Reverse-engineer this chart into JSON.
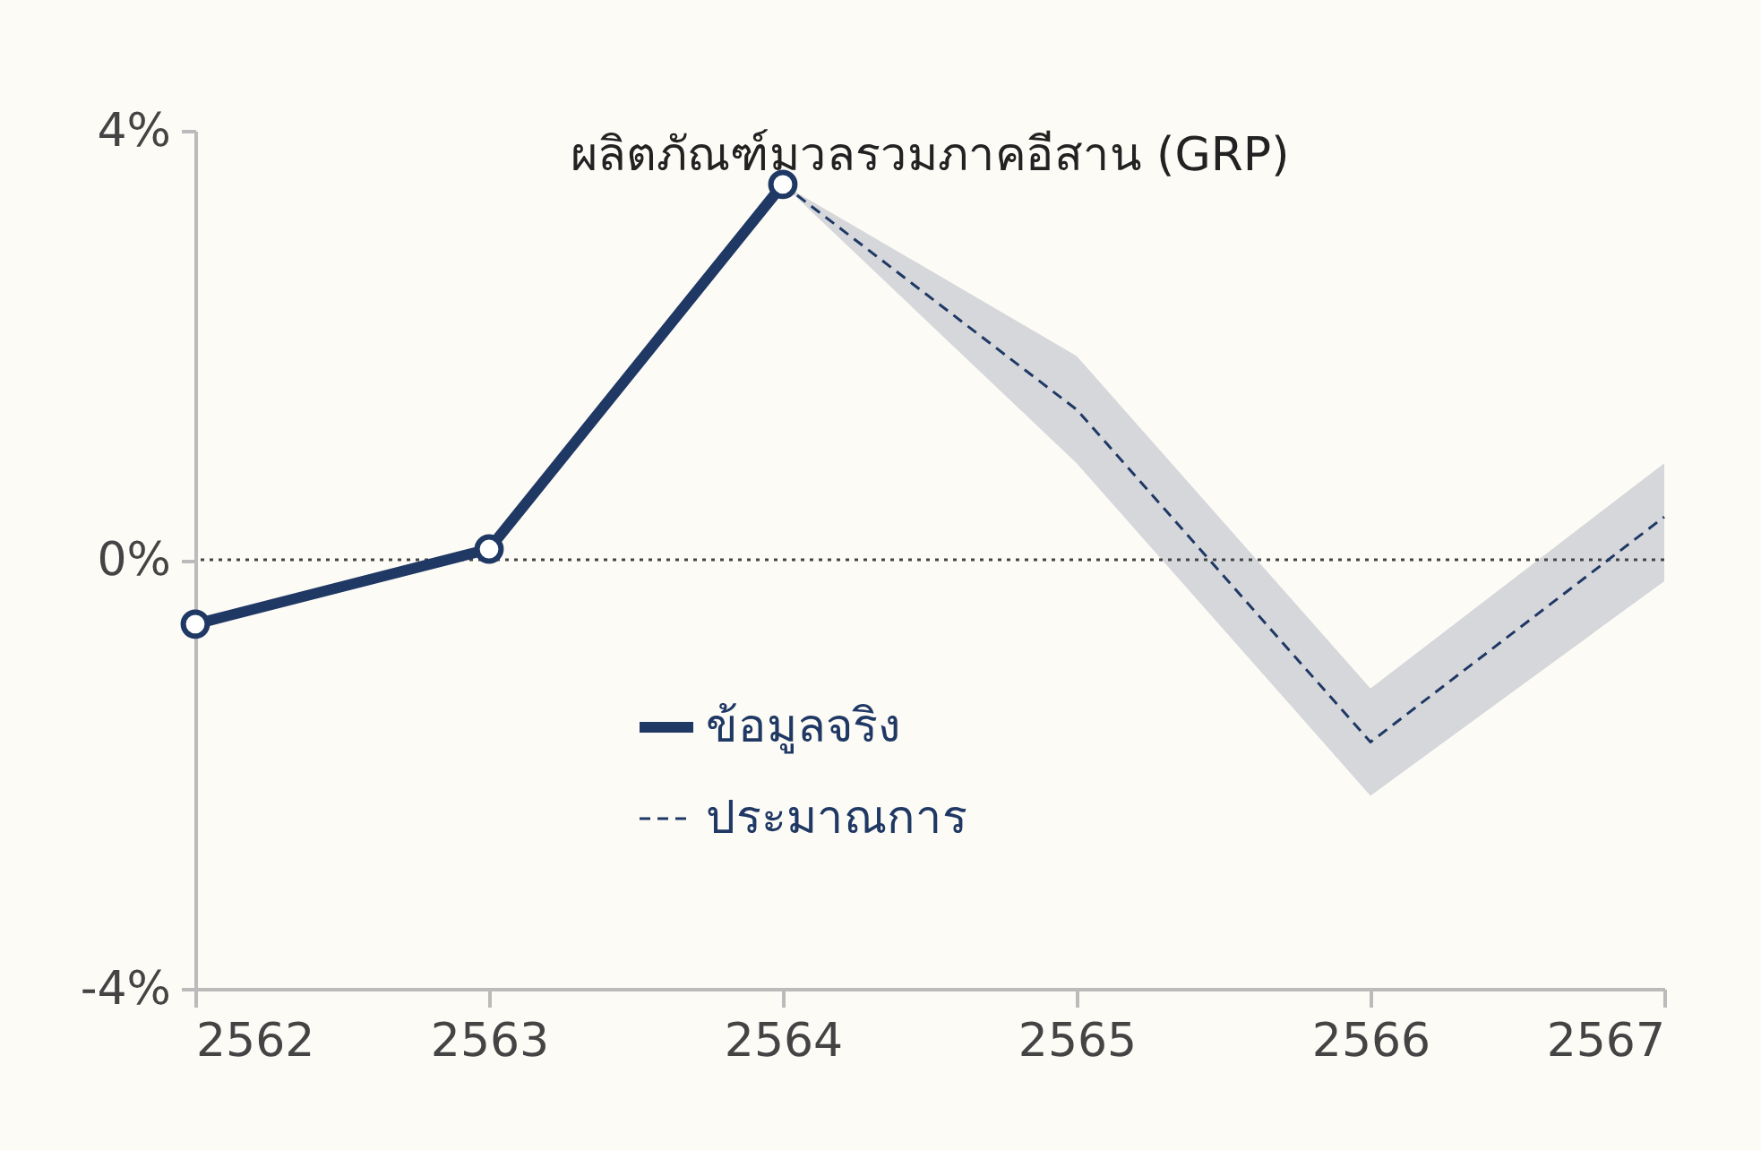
{
  "chart_data": {
    "type": "line",
    "title": "ผลิตภัณฑ์มวลรวมภาคอีสาน (GRP)",
    "x": [
      2562,
      2563,
      2564,
      2565,
      2566,
      2567
    ],
    "xlim": [
      2562,
      2567
    ],
    "xticks": [
      2562,
      2563,
      2564,
      2565,
      2566,
      2567
    ],
    "ylim": [
      -4,
      4
    ],
    "yticks": [
      {
        "value": -4,
        "label": "-4%"
      },
      {
        "value": 0,
        "label": "0%"
      },
      {
        "value": 4,
        "label": "4%"
      }
    ],
    "series": [
      {
        "name": "ข้อมูลจริง",
        "color": "#1f3864",
        "marker": "circle",
        "line_style": "solid",
        "values": [
          -0.6,
          0.1,
          3.5,
          null,
          null,
          null
        ]
      },
      {
        "name": "ประมาณการ",
        "color": "#1f3864",
        "marker": "none",
        "line_style": "dashed",
        "values": [
          null,
          null,
          3.5,
          1.4,
          -1.7,
          0.4
        ],
        "lower": [
          null,
          null,
          3.5,
          0.9,
          -2.2,
          -0.2
        ],
        "upper": [
          null,
          null,
          3.5,
          1.9,
          -1.2,
          0.9
        ]
      }
    ],
    "ref_lines": [
      {
        "axis": "y",
        "value": 0,
        "line_style": "dotted",
        "color": "#444444"
      }
    ],
    "grid": false,
    "legend": "bottom left"
  }
}
